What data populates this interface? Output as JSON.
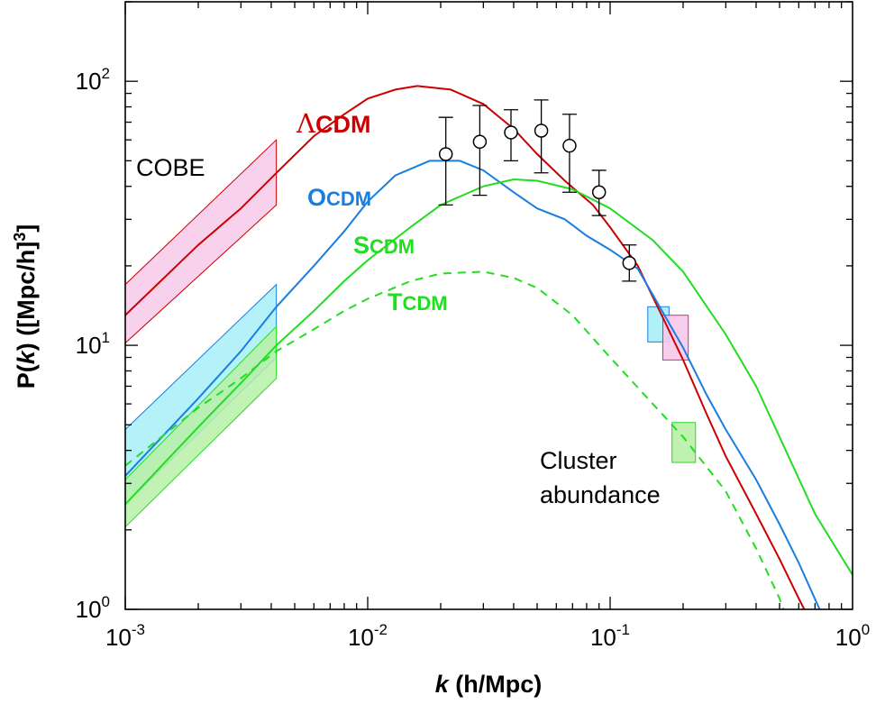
{
  "chart_data": {
    "type": "line",
    "xscale": "log",
    "yscale": "log",
    "xlim": [
      0.001,
      1
    ],
    "ylim": [
      1,
      200
    ],
    "xlabel": {
      "var": "k",
      "rest": " (h/Mpc)"
    },
    "ylabel": {
      "pre": "P(",
      "var": "k",
      "post": ") ([Mpc/h]",
      "sup": "3",
      "end": "]"
    },
    "x_ticks": [
      {
        "value": 0.001,
        "base": "10",
        "exp": "-3"
      },
      {
        "value": 0.01,
        "base": "10",
        "exp": "-2"
      },
      {
        "value": 0.1,
        "base": "10",
        "exp": "-1"
      },
      {
        "value": 1,
        "base": "10",
        "exp": "0"
      }
    ],
    "y_ticks": [
      {
        "value": 1,
        "base": "10",
        "exp": "0"
      },
      {
        "value": 10,
        "base": "10",
        "exp": "1"
      },
      {
        "value": 100,
        "base": "10",
        "exp": "2"
      }
    ],
    "grid": false,
    "series": [
      {
        "name": "ΛCDM",
        "label_parts": [
          "Λ",
          "CDM"
        ],
        "color": "#cc0000",
        "dash": "solid",
        "points": [
          [
            0.001,
            13
          ],
          [
            0.002,
            24
          ],
          [
            0.003,
            33
          ],
          [
            0.0042,
            45
          ],
          [
            0.006,
            62
          ],
          [
            0.008,
            75
          ],
          [
            0.01,
            86
          ],
          [
            0.013,
            93
          ],
          [
            0.016,
            96
          ],
          [
            0.022,
            93
          ],
          [
            0.03,
            82
          ],
          [
            0.04,
            66
          ],
          [
            0.05,
            53
          ],
          [
            0.065,
            42
          ],
          [
            0.085,
            34
          ],
          [
            0.1,
            28
          ],
          [
            0.13,
            20
          ],
          [
            0.16,
            13.5
          ],
          [
            0.2,
            8.8
          ],
          [
            0.25,
            5.5
          ],
          [
            0.3,
            3.8
          ],
          [
            0.4,
            2.3
          ],
          [
            0.5,
            1.55
          ],
          [
            0.6,
            1.1
          ],
          [
            0.65,
            0.95
          ]
        ]
      },
      {
        "name": "OCDM",
        "label_parts": [
          "O",
          "CDM"
        ],
        "color": "#1a7ee0",
        "dash": "solid",
        "points": [
          [
            0.001,
            3.2
          ],
          [
            0.002,
            6.3
          ],
          [
            0.003,
            9.5
          ],
          [
            0.0042,
            14
          ],
          [
            0.006,
            20
          ],
          [
            0.008,
            27
          ],
          [
            0.01,
            35
          ],
          [
            0.013,
            44
          ],
          [
            0.018,
            50
          ],
          [
            0.024,
            50
          ],
          [
            0.03,
            46
          ],
          [
            0.04,
            38
          ],
          [
            0.05,
            33
          ],
          [
            0.065,
            30
          ],
          [
            0.08,
            26
          ],
          [
            0.1,
            23
          ],
          [
            0.13,
            19.5
          ],
          [
            0.16,
            14
          ],
          [
            0.2,
            9.8
          ],
          [
            0.25,
            6.5
          ],
          [
            0.3,
            4.8
          ],
          [
            0.4,
            3.1
          ],
          [
            0.5,
            2.1
          ],
          [
            0.6,
            1.5
          ],
          [
            0.75,
            0.95
          ]
        ]
      },
      {
        "name": "SCDM",
        "label_parts": [
          "S",
          "CDM"
        ],
        "color": "#22dd22",
        "dash": "solid",
        "points": [
          [
            0.001,
            2.5
          ],
          [
            0.002,
            4.9
          ],
          [
            0.003,
            7.2
          ],
          [
            0.0042,
            10
          ],
          [
            0.006,
            13.5
          ],
          [
            0.008,
            17.5
          ],
          [
            0.01,
            21
          ],
          [
            0.015,
            28
          ],
          [
            0.02,
            34
          ],
          [
            0.03,
            40
          ],
          [
            0.04,
            42.5
          ],
          [
            0.05,
            42
          ],
          [
            0.07,
            39
          ],
          [
            0.1,
            33
          ],
          [
            0.15,
            25
          ],
          [
            0.2,
            19
          ],
          [
            0.3,
            11
          ],
          [
            0.4,
            7
          ],
          [
            0.5,
            4.5
          ],
          [
            0.7,
            2.3
          ],
          [
            1,
            1.35
          ]
        ]
      },
      {
        "name": "TCDM",
        "label_parts": [
          "T",
          "CDM"
        ],
        "color": "#22dd22",
        "dash": "dashed",
        "points": [
          [
            0.001,
            3.5
          ],
          [
            0.002,
            5.8
          ],
          [
            0.003,
            7.5
          ],
          [
            0.0042,
            9.5
          ],
          [
            0.006,
            11.5
          ],
          [
            0.008,
            13.5
          ],
          [
            0.01,
            15
          ],
          [
            0.015,
            17.5
          ],
          [
            0.02,
            18.7
          ],
          [
            0.03,
            19
          ],
          [
            0.04,
            18
          ],
          [
            0.05,
            16.5
          ],
          [
            0.07,
            13
          ],
          [
            0.1,
            9
          ],
          [
            0.15,
            6
          ],
          [
            0.2,
            4.5
          ],
          [
            0.3,
            2.8
          ],
          [
            0.4,
            1.7
          ],
          [
            0.5,
            1.1
          ],
          [
            0.53,
            0.95
          ]
        ]
      }
    ],
    "data_points": [
      {
        "x": 0.021,
        "y": 53,
        "ylo": 34,
        "yhi": 73
      },
      {
        "x": 0.029,
        "y": 59,
        "ylo": 37,
        "yhi": 81
      },
      {
        "x": 0.039,
        "y": 64,
        "ylo": 50,
        "yhi": 78
      },
      {
        "x": 0.052,
        "y": 65,
        "ylo": 45,
        "yhi": 85
      },
      {
        "x": 0.068,
        "y": 57,
        "ylo": 38,
        "yhi": 75
      },
      {
        "x": 0.09,
        "y": 38,
        "ylo": 31,
        "yhi": 46
      },
      {
        "x": 0.12,
        "y": 20.5,
        "ylo": 17.5,
        "yhi": 24
      }
    ],
    "bands": [
      {
        "name": "COBE ΛCDM",
        "fill": "#f7c9ea",
        "stroke": "#cc0000",
        "x": [
          0.001,
          0.0042
        ],
        "lo": [
          10.2,
          34
        ],
        "hi": [
          17,
          60
        ]
      },
      {
        "name": "COBE OCDM",
        "fill": "#a8eef7",
        "stroke": "#1a7ee0",
        "x": [
          0.001,
          0.0042
        ],
        "lo": [
          2.5,
          9
        ],
        "hi": [
          4.8,
          17
        ]
      },
      {
        "name": "COBE SCDM",
        "fill": "#b8f0a8",
        "stroke": "#22dd22",
        "x": [
          0.001,
          0.0042
        ],
        "lo": [
          2.05,
          7.5
        ],
        "hi": [
          3.1,
          11.8
        ]
      }
    ],
    "boxes": [
      {
        "name": "cluster OCDM",
        "fill": "#a8eef7",
        "stroke": "#1a7ee0",
        "x": [
          0.143,
          0.175
        ],
        "y": [
          10.3,
          14
        ]
      },
      {
        "name": "cluster ΛCDM",
        "fill": "#f7c9ea",
        "stroke": "#cc3377",
        "x": [
          0.165,
          0.21
        ],
        "y": [
          8.8,
          13
        ]
      },
      {
        "name": "cluster SCDM",
        "fill": "#b8f0a8",
        "stroke": "#22dd22",
        "x": [
          0.18,
          0.225
        ],
        "y": [
          3.6,
          5.1
        ]
      }
    ],
    "annotations": {
      "cobe": "COBE",
      "cluster_line1": "Cluster",
      "cluster_line2": "abundance"
    }
  }
}
